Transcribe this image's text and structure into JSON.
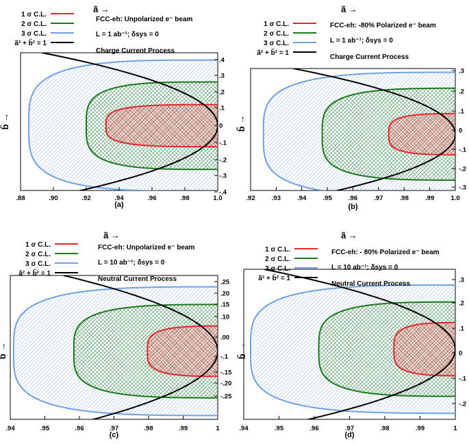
{
  "colors": {
    "c1": "#e8252b",
    "c2": "#1a7a1a",
    "c3": "#6fa0e6",
    "unit": "#000000"
  },
  "chart_data": [
    {
      "type": "scatter",
      "panel_label": "(a)",
      "xlabel": "ã →",
      "ylabel": "b̃ →",
      "xlim": [
        0.88,
        1.0
      ],
      "ylim": [
        -0.4,
        0.45
      ],
      "x_ticks": [
        ".88",
        ".90",
        ".92",
        ".94",
        ".96",
        ".98",
        "1.0"
      ],
      "y_ticks": [
        ".4",
        ".3",
        ".2",
        ".1",
        "0",
        "-.1",
        "-.2",
        "-.3",
        "-.4"
      ],
      "legend": [
        "1 σ C.L.",
        "2 σ C.L.",
        "3 σ C.L.",
        "ã² + b̃² = 1"
      ],
      "texts": {
        "beam": "FCC-eh: Unpolarized e⁻ beam",
        "lumi": "L = 1 ab⁻¹;  δsys = 0",
        "process": "Charge Current Process"
      },
      "contours": [
        {
          "name": "1 σ C.L.",
          "xmin": 0.932,
          "xc": 1.0,
          "rx": 0.068,
          "ry": 0.13
        },
        {
          "name": "2 σ C.L.",
          "xmin": 0.92,
          "xc": 1.0,
          "rx": 0.08,
          "ry": 0.27
        },
        {
          "name": "3 σ C.L.",
          "xmin": 0.885,
          "xc": 1.0,
          "rx": 0.115,
          "ry": 0.405
        }
      ]
    },
    {
      "type": "scatter",
      "panel_label": "(b)",
      "xlabel": "ã →",
      "ylabel": "b̃ →",
      "xlim": [
        0.92,
        1.0
      ],
      "ylim": [
        -0.3,
        0.35
      ],
      "x_ticks": [
        ".92",
        ".93",
        ".94",
        ".95",
        ".96",
        ".97",
        ".98",
        ".99",
        "1.0"
      ],
      "y_ticks": [
        ".3",
        ".2",
        ".1",
        "0",
        "-.1",
        "-.2",
        "-.3"
      ],
      "legend": [
        "1 σ C.L.",
        "2 σ C.L.",
        "3 σ C.L.",
        "ã² + b̃² = 1"
      ],
      "texts": {
        "beam": "FCC-eh: -80% Polarized e⁻ beam",
        "lumi": "L = 1 ab⁻¹;  δsys = 0",
        "process": "Charge Current Process"
      },
      "contours": [
        {
          "name": "1 σ C.L.",
          "xmin": 0.974,
          "xc": 1.005,
          "rx": 0.031,
          "ry": 0.11
        },
        {
          "name": "2 σ C.L.",
          "xmin": 0.948,
          "xc": 1.005,
          "rx": 0.057,
          "ry": 0.245
        },
        {
          "name": "3 σ C.L.",
          "xmin": 0.925,
          "xc": 1.005,
          "rx": 0.08,
          "ry": 0.33
        }
      ]
    },
    {
      "type": "scatter",
      "panel_label": "(c)",
      "xlabel": "ã →",
      "ylabel": "b̃ →",
      "xlim": [
        0.938,
        1.0
      ],
      "ylim": [
        -0.27,
        0.3
      ],
      "x_ticks": [
        ".94",
        ".95",
        ".96",
        ".97",
        ".98",
        ".99",
        "1"
      ],
      "y_ticks": [
        ".25",
        ".20",
        ".15",
        ".10",
        ".00",
        "-.1",
        "-.15",
        "-.20",
        "-.25"
      ],
      "legend": [
        "1 σ C.L.",
        "2 σ C.L.",
        "3 σ C.L.",
        "ã² + b̃² = 1"
      ],
      "texts": {
        "beam": "FCC-eh: Unpolarized e⁻ beam",
        "lumi": "L = 10 ab⁻¹;  δsys = 0",
        "process": "Neutral Current Process"
      },
      "contours": [
        {
          "name": "1 σ C.L.",
          "xmin": 0.979,
          "xc": 1.004,
          "rx": 0.025,
          "ry": 0.1
        },
        {
          "name": "2 σ C.L.",
          "xmin": 0.957,
          "xc": 1.004,
          "rx": 0.047,
          "ry": 0.185
        },
        {
          "name": "3 σ C.L.",
          "xmin": 0.939,
          "xc": 1.004,
          "rx": 0.065,
          "ry": 0.255
        }
      ]
    },
    {
      "type": "scatter",
      "panel_label": "(d)",
      "xlabel": "ã →",
      "ylabel": "b̃ →",
      "xlim": [
        0.938,
        1.0
      ],
      "ylim": [
        -0.29,
        0.33
      ],
      "x_ticks": [
        ".94",
        ".95",
        ".96",
        ".97",
        ".98",
        ".99",
        "1"
      ],
      "y_ticks": [
        ".3",
        ".2",
        ".1",
        "0",
        "-.1",
        "-.2"
      ],
      "legend": [
        "1 σ C.L.",
        "2 σ C.L.",
        "3 σ C.L.",
        "ã² + b̃² = 1"
      ],
      "texts": {
        "beam": "FCC-eh: - 80% Polarized e⁻ beam",
        "lumi": "L = 10 ab⁻¹;  δsys = 0",
        "process": "Neutral Current Process"
      },
      "contours": [
        {
          "name": "1 σ C.L.",
          "xmin": 0.982,
          "xc": 1.004,
          "rx": 0.022,
          "ry": 0.11
        },
        {
          "name": "2 σ C.L.",
          "xmin": 0.96,
          "xc": 1.004,
          "rx": 0.044,
          "ry": 0.195
        },
        {
          "name": "3 σ C.L.",
          "xmin": 0.94,
          "xc": 1.004,
          "rx": 0.064,
          "ry": 0.265
        }
      ]
    }
  ]
}
